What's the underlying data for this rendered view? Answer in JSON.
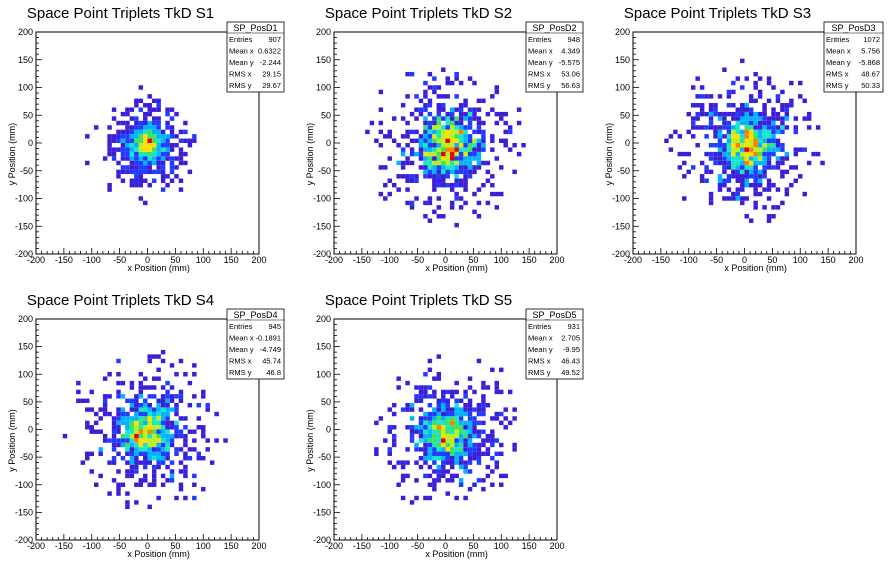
{
  "chart_data": [
    {
      "type": "heatmap",
      "title": "Space Point Triplets TkD S1",
      "xlabel": "x Position (mm)",
      "ylabel": "y Position (mm)",
      "xlim": [
        -200,
        200
      ],
      "ylim": [
        -200,
        200
      ],
      "xticks": [
        "-200",
        "-150",
        "-100",
        "-50",
        "0",
        "50",
        "100",
        "150",
        "200"
      ],
      "yticks": [
        "-200",
        "-150",
        "-100",
        "-50",
        "0",
        "50",
        "100",
        "150",
        "200"
      ],
      "stats": {
        "name": "SP_PosD1",
        "rows": [
          {
            "label": "Entries",
            "value": "907"
          },
          {
            "label": "Mean x",
            "value": "0.6322"
          },
          {
            "label": "Mean y",
            "value": "-2.244"
          },
          {
            "label": "RMS x",
            "value": "29.15"
          },
          {
            "label": "RMS y",
            "value": "29.67"
          }
        ]
      },
      "entries": 907,
      "mean_x": 0.6322,
      "mean_y": -2.244,
      "rms_x": 29.15,
      "rms_y": 29.67,
      "bin_width": 8,
      "peak_count": 12
    },
    {
      "type": "heatmap",
      "title": "Space Point Triplets TkD S2",
      "xlabel": "x Position (mm)",
      "ylabel": "y Position (mm)",
      "xlim": [
        -200,
        200
      ],
      "ylim": [
        -200,
        200
      ],
      "xticks": [
        "-200",
        "-150",
        "-100",
        "-50",
        "0",
        "50",
        "100",
        "150",
        "200"
      ],
      "yticks": [
        "-200",
        "-150",
        "-100",
        "-50",
        "0",
        "50",
        "100",
        "150",
        "200"
      ],
      "stats": {
        "name": "SP_PosD2",
        "rows": [
          {
            "label": "Entries",
            "value": "948"
          },
          {
            "label": "Mean x",
            "value": "4.349"
          },
          {
            "label": "Mean y",
            "value": "-5.575"
          },
          {
            "label": "RMS x",
            "value": "53.06"
          },
          {
            "label": "RMS y",
            "value": "56.63"
          }
        ]
      },
      "entries": 948,
      "mean_x": 4.349,
      "mean_y": -5.575,
      "rms_x": 53.06,
      "rms_y": 56.63,
      "bin_width": 8,
      "peak_count": 6
    },
    {
      "type": "heatmap",
      "title": "Space Point Triplets TkD S3",
      "xlabel": "x Position (mm)",
      "ylabel": "y Position (mm)",
      "xlim": [
        -200,
        200
      ],
      "ylim": [
        -200,
        200
      ],
      "xticks": [
        "-200",
        "-150",
        "-100",
        "-50",
        "0",
        "50",
        "100",
        "150",
        "200"
      ],
      "yticks": [
        "-200",
        "-150",
        "-100",
        "-50",
        "0",
        "50",
        "100",
        "150",
        "200"
      ],
      "stats": {
        "name": "SP_PosD3",
        "rows": [
          {
            "label": "Entries",
            "value": "1072"
          },
          {
            "label": "Mean x",
            "value": "5.756"
          },
          {
            "label": "Mean y",
            "value": "-5.868"
          },
          {
            "label": "RMS x",
            "value": "48.67"
          },
          {
            "label": "RMS y",
            "value": "50.33"
          }
        ]
      },
      "entries": 1072,
      "mean_x": 5.756,
      "mean_y": -5.868,
      "rms_x": 48.67,
      "rms_y": 50.33,
      "bin_width": 8,
      "peak_count": 7
    },
    {
      "type": "heatmap",
      "title": "Space Point Triplets TkD S4",
      "xlabel": "x Position (mm)",
      "ylabel": "y Position (mm)",
      "xlim": [
        -200,
        200
      ],
      "ylim": [
        -200,
        200
      ],
      "xticks": [
        "-200",
        "-150",
        "-100",
        "-50",
        "0",
        "50",
        "100",
        "150",
        "200"
      ],
      "yticks": [
        "-200",
        "-150",
        "-100",
        "-50",
        "0",
        "50",
        "100",
        "150",
        "200"
      ],
      "stats": {
        "name": "SP_PosD4",
        "rows": [
          {
            "label": "Entries",
            "value": "945"
          },
          {
            "label": "Mean x",
            "value": "-0.1891"
          },
          {
            "label": "Mean y",
            "value": "-4.749"
          },
          {
            "label": "RMS x",
            "value": "45.74"
          },
          {
            "label": "RMS y",
            "value": "46.8"
          }
        ]
      },
      "entries": 945,
      "mean_x": -0.1891,
      "mean_y": -4.749,
      "rms_x": 45.74,
      "rms_y": 46.8,
      "bin_width": 8,
      "peak_count": 8
    },
    {
      "type": "heatmap",
      "title": "Space Point Triplets TkD S5",
      "xlabel": "x Position (mm)",
      "ylabel": "y Position (mm)",
      "xlim": [
        -200,
        200
      ],
      "ylim": [
        -200,
        200
      ],
      "xticks": [
        "-200",
        "-150",
        "-100",
        "-50",
        "0",
        "50",
        "100",
        "150",
        "200"
      ],
      "yticks": [
        "-200",
        "-150",
        "-100",
        "-50",
        "0",
        "50",
        "100",
        "150",
        "200"
      ],
      "stats": {
        "name": "SP_PosD5",
        "rows": [
          {
            "label": "Entries",
            "value": "931"
          },
          {
            "label": "Mean x",
            "value": "2.705"
          },
          {
            "label": "Mean y",
            "value": "-9.95"
          },
          {
            "label": "RMS x",
            "value": "46.43"
          },
          {
            "label": "RMS y",
            "value": "49.52"
          }
        ]
      },
      "entries": 931,
      "mean_x": 2.705,
      "mean_y": -9.95,
      "rms_x": 46.43,
      "rms_y": 49.52,
      "bin_width": 8,
      "peak_count": 8
    }
  ],
  "colors": {
    "palette": [
      "#3a1fd6",
      "#1f3cff",
      "#00b4ff",
      "#18e6c8",
      "#40e060",
      "#b8f020",
      "#ffe000",
      "#ff8000",
      "#e80000"
    ],
    "axis": "#000000",
    "background": "#ffffff"
  }
}
